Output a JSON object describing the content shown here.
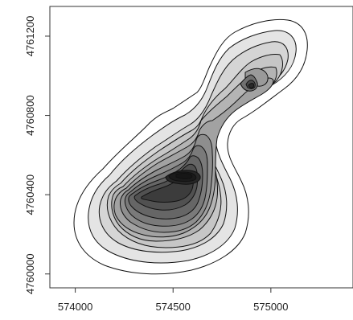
{
  "chart_data": {
    "type": "contour",
    "title": "",
    "xlabel": "",
    "ylabel": "",
    "xlim": [
      573870,
      575420
    ],
    "ylim": [
      4759930,
      4761350
    ],
    "x_ticks": [
      574000,
      574500,
      575000
    ],
    "x_tick_labels": [
      "574000",
      "574500",
      "575000"
    ],
    "y_ticks": [
      4760000,
      4760400,
      4760800,
      4761200
    ],
    "y_tick_labels": [
      "4760000",
      "4760400",
      "4760800",
      "4761200"
    ],
    "grid": false,
    "levels": [
      {
        "level": 1,
        "fill": "#ffffff"
      },
      {
        "level": 2,
        "fill": "#e4e4e4"
      },
      {
        "level": 3,
        "fill": "#d5d5d5"
      },
      {
        "level": 4,
        "fill": "#c6c6c6"
      },
      {
        "level": 5,
        "fill": "#b4b4b4"
      },
      {
        "level": 6,
        "fill": "#a2a2a2"
      },
      {
        "level": 7,
        "fill": "#8e8e8e"
      },
      {
        "level": 8,
        "fill": "#7a7a7a"
      },
      {
        "level": 9,
        "fill": "#666666"
      },
      {
        "level": 10,
        "fill": "#515151"
      },
      {
        "level": 11,
        "fill": "#3c3c3c"
      },
      {
        "level": 12,
        "fill": "#262626"
      }
    ],
    "peaks": [
      {
        "x": 574560,
        "y": 4760430
      },
      {
        "x": 574910,
        "y": 4760960
      }
    ]
  }
}
